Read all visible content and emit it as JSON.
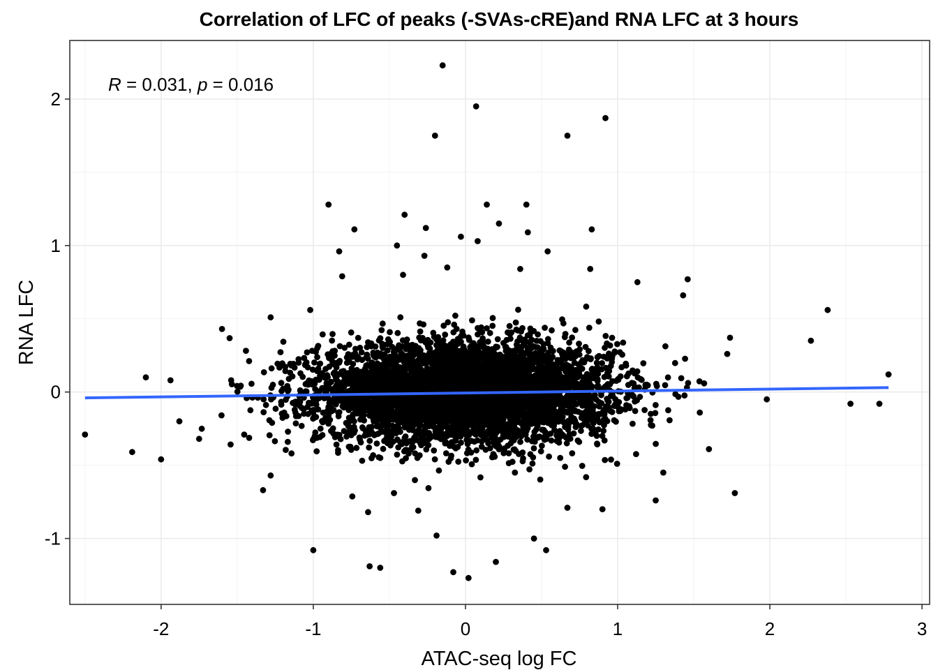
{
  "chart_data": {
    "type": "scatter",
    "title": "Correlation of LFC of peaks (-SVAs-cRE)and RNA LFC at 3 hours",
    "xlabel": "ATAC-seq log FC",
    "ylabel": "RNA LFC",
    "xlim": [
      -2.6,
      3.05
    ],
    "ylim": [
      -1.45,
      2.4
    ],
    "x_ticks": [
      -2,
      -1,
      0,
      1,
      2,
      3
    ],
    "x_tick_labels": [
      "-2",
      "-1",
      "0",
      "1",
      "2",
      "3"
    ],
    "y_ticks": [
      -1,
      0,
      1,
      2
    ],
    "y_tick_labels": [
      "-1",
      "0",
      "1",
      "2"
    ],
    "grid": true,
    "annotation": {
      "r_symbol": "R",
      "r_text": " = 0.031, ",
      "p_symbol": "p",
      "p_text": " = 0.016"
    },
    "regression_line": {
      "x": [
        -2.5,
        2.78
      ],
      "y": [
        -0.04,
        0.03
      ],
      "color": "#3366FF"
    },
    "point_color": "#000000",
    "points": [
      [
        -0.15,
        2.23
      ],
      [
        0.07,
        1.95
      ],
      [
        -0.2,
        1.75
      ],
      [
        0.67,
        1.75
      ],
      [
        0.92,
        1.87
      ],
      [
        -0.9,
        1.28
      ],
      [
        0.14,
        1.28
      ],
      [
        0.4,
        1.28
      ],
      [
        -0.4,
        1.21
      ],
      [
        -0.73,
        1.11
      ],
      [
        -0.26,
        1.12
      ],
      [
        0.22,
        1.15
      ],
      [
        0.83,
        1.11
      ],
      [
        0.41,
        1.09
      ],
      [
        -0.83,
        0.96
      ],
      [
        -0.03,
        1.06
      ],
      [
        0.54,
        0.96
      ],
      [
        0.08,
        1.03
      ],
      [
        -0.45,
        1.0
      ],
      [
        -0.27,
        0.93
      ],
      [
        -0.12,
        0.85
      ],
      [
        0.36,
        0.84
      ],
      [
        -0.81,
        0.79
      ],
      [
        -0.41,
        0.8
      ],
      [
        0.82,
        0.84
      ],
      [
        1.13,
        0.75
      ],
      [
        1.46,
        0.77
      ],
      [
        -2.1,
        0.1
      ],
      [
        -1.6,
        0.43
      ],
      [
        -1.28,
        0.51
      ],
      [
        -1.02,
        0.56
      ],
      [
        1.43,
        0.66
      ],
      [
        2.38,
        0.56
      ],
      [
        2.27,
        0.35
      ],
      [
        2.78,
        0.12
      ],
      [
        -2.5,
        -0.29
      ],
      [
        -2.19,
        -0.41
      ],
      [
        -2.0,
        -0.46
      ],
      [
        -1.33,
        -0.67
      ],
      [
        -1.28,
        -0.57
      ],
      [
        -1.0,
        -1.08
      ],
      [
        -0.63,
        -1.19
      ],
      [
        -0.56,
        -1.2
      ],
      [
        -0.19,
        -0.98
      ],
      [
        -0.08,
        -1.23
      ],
      [
        0.02,
        -1.27
      ],
      [
        0.2,
        -1.16
      ],
      [
        0.53,
        -1.08
      ],
      [
        0.45,
        -1.0
      ],
      [
        -0.47,
        -0.69
      ],
      [
        0.67,
        -0.79
      ],
      [
        0.9,
        -0.8
      ],
      [
        1.77,
        -0.69
      ],
      [
        1.6,
        -0.39
      ],
      [
        1.25,
        -0.74
      ],
      [
        2.53,
        -0.08
      ],
      [
        2.72,
        -0.08
      ],
      [
        1.98,
        -0.05
      ],
      [
        -1.88,
        -0.2
      ],
      [
        -1.75,
        -0.32
      ],
      [
        -0.64,
        -0.82
      ],
      [
        -0.31,
        -0.81
      ],
      [
        1.3,
        -0.55
      ],
      [
        1.54,
        -0.14
      ],
      [
        1.72,
        0.26
      ]
    ]
  }
}
